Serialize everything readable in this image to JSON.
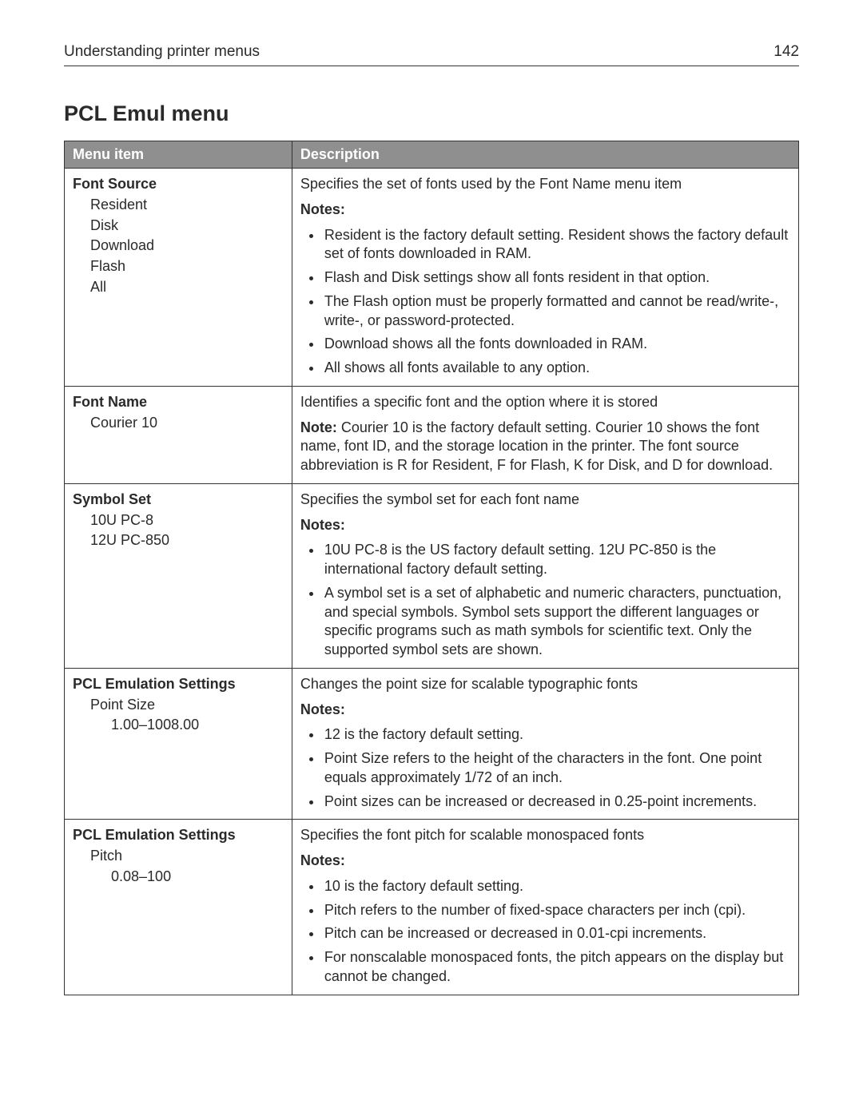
{
  "header": {
    "title": "Understanding printer menus",
    "page_number": "142"
  },
  "section": {
    "title": "PCL Emul menu"
  },
  "table": {
    "columns": {
      "item": "Menu item",
      "desc": "Description"
    },
    "rows": [
      {
        "item": {
          "title": "Font Source",
          "options": [
            "Resident",
            "Disk",
            "Download",
            "Flash",
            "All"
          ]
        },
        "desc": {
          "summary": "Specifies the set of fonts used by the Font Name menu item",
          "notes_label": "Notes:",
          "bullets": [
            "Resident is the factory default setting. Resident shows the factory default set of fonts downloaded in RAM.",
            "Flash and Disk settings show all fonts resident in that option.",
            "The Flash option must be properly formatted and cannot be read/write-, write-, or password-protected.",
            "Download shows all the fonts downloaded in RAM.",
            "All shows all fonts available to any option."
          ]
        }
      },
      {
        "item": {
          "title": "Font Name",
          "options": [
            "Courier 10"
          ]
        },
        "desc": {
          "summary": "Identifies a specific font and the option where it is stored",
          "note_inline": {
            "label": "Note:",
            "text": " Courier 10 is the factory default setting. Courier 10 shows the font name, font ID, and the storage location in the printer. The font source abbreviation is R for Resident, F for Flash, K for Disk, and D for download."
          }
        }
      },
      {
        "item": {
          "title": "Symbol Set",
          "options": [
            "10U PC-8",
            "12U PC-850"
          ]
        },
        "desc": {
          "summary": "Specifies the symbol set for each font name",
          "notes_label": "Notes:",
          "bullets": [
            "10U PC-8 is the US factory default setting. 12U PC-850 is the international factory default setting.",
            "A symbol set is a set of alphabetic and numeric characters, punctuation, and special symbols. Symbol sets support the different languages or specific programs such as math symbols for scientific text. Only the supported symbol sets are shown."
          ]
        }
      },
      {
        "item": {
          "title": "PCL Emulation Settings",
          "options": [
            "Point Size"
          ],
          "suboptions": [
            "1.00–1008.00"
          ]
        },
        "desc": {
          "summary": "Changes the point size for scalable typographic fonts",
          "notes_label": "Notes:",
          "bullets": [
            "12 is the factory default setting.",
            "Point Size refers to the height of the characters in the font. One point equals approximately 1/72 of an inch.",
            "Point sizes can be increased or decreased in 0.25-point increments."
          ]
        }
      },
      {
        "item": {
          "title": "PCL Emulation Settings",
          "options": [
            "Pitch"
          ],
          "suboptions": [
            "0.08–100"
          ]
        },
        "desc": {
          "summary": "Specifies the font pitch for scalable monospaced fonts",
          "notes_label": "Notes:",
          "bullets": [
            "10 is the factory default setting.",
            "Pitch refers to the number of fixed-space characters per inch (cpi).",
            "Pitch can be increased or decreased in 0.01-cpi increments.",
            "For nonscalable monospaced fonts, the pitch appears on the display but cannot be changed."
          ]
        }
      }
    ]
  }
}
